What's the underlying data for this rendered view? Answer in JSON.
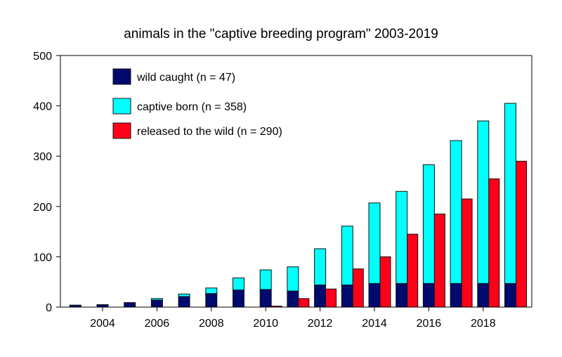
{
  "chart_data": {
    "type": "bar",
    "title": "animals in the \"captive breeding program\" 2003-2019",
    "xlabel": "",
    "ylabel": "",
    "ylim": [
      0,
      500
    ],
    "yticks": [
      0,
      100,
      200,
      300,
      400,
      500
    ],
    "xticks": [
      2004,
      2006,
      2008,
      2010,
      2012,
      2014,
      2016,
      2018
    ],
    "categories": [
      2003,
      2004,
      2005,
      2006,
      2007,
      2008,
      2009,
      2010,
      2011,
      2012,
      2013,
      2014,
      2015,
      2016,
      2017,
      2018,
      2019
    ],
    "stacked_series": [
      {
        "name": "wild caught (n = 47)",
        "color": "#000a6e",
        "values": [
          4,
          5,
          9,
          14,
          21,
          27,
          34,
          35,
          32,
          44,
          44,
          47,
          47,
          47,
          47,
          47,
          47
        ]
      },
      {
        "name": "captive born (n = 358)",
        "color": "#00ffff",
        "values": [
          0,
          0,
          0,
          3,
          5,
          11,
          24,
          39,
          48,
          72,
          117,
          160,
          183,
          236,
          284,
          323,
          358
        ]
      }
    ],
    "side_series": {
      "name": "released to the wild (n = 290)",
      "color": "#ff0018",
      "values": [
        0,
        0,
        0,
        0,
        0,
        0,
        0,
        2,
        17,
        36,
        76,
        100,
        145,
        185,
        215,
        255,
        290
      ]
    },
    "legend_position": "top-left",
    "grid": false
  }
}
